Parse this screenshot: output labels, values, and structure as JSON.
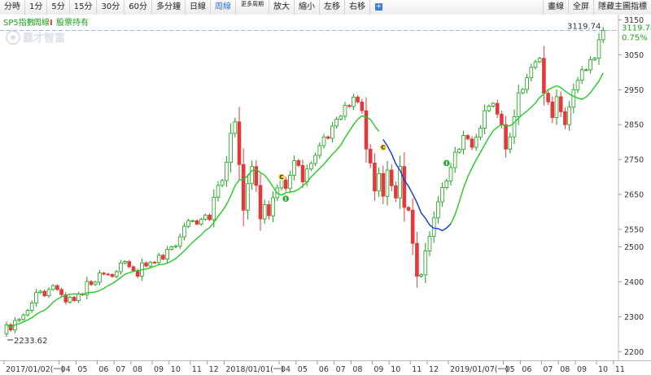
{
  "toolbar": {
    "left": [
      {
        "id": "minute-chart",
        "label": "分時"
      },
      {
        "id": "1min",
        "label": "1分"
      },
      {
        "id": "5min",
        "label": "5分"
      },
      {
        "id": "15min",
        "label": "15分"
      },
      {
        "id": "30min",
        "label": "30分"
      },
      {
        "id": "60min",
        "label": "60分"
      },
      {
        "id": "multi-min",
        "label": "多分鐘"
      },
      {
        "id": "daily",
        "label": "日線"
      },
      {
        "id": "weekly",
        "label": "周線",
        "active": true
      },
      {
        "id": "more-periods",
        "label": "更多周期"
      },
      {
        "id": "zoom-in",
        "label": "放大"
      },
      {
        "id": "zoom-out",
        "label": "縮小"
      },
      {
        "id": "move-left",
        "label": "左移"
      },
      {
        "id": "move-right",
        "label": "右移"
      }
    ],
    "plus_label": "+",
    "right": [
      {
        "id": "drawing",
        "label": "畫線"
      },
      {
        "id": "fullscreen",
        "label": "全屏"
      },
      {
        "id": "hide-indicator",
        "label": "隱藏主圖指標"
      }
    ]
  },
  "legend": {
    "symbol": "SP5指數",
    "period": "周線",
    "mark": "I",
    "holding": "股票持有"
  },
  "watermark": "露才智富",
  "colors": {
    "up": "#e23a3a",
    "down": "#18a018",
    "ma": "#22cc22",
    "ma_alt": "#1533d6",
    "last_price": "#20a020",
    "toolbar_active": "#2a73d9"
  },
  "chart_data": {
    "type": "candlestick",
    "ylim": [
      2175,
      3165
    ],
    "yticks": [
      2200,
      2300,
      2400,
      2500,
      2550,
      2650,
      2750,
      2850,
      2950,
      3050,
      3150
    ],
    "x_labels": [
      "2017/01/02(一)",
      "04",
      "05",
      "06",
      "07",
      "08",
      "09",
      "10",
      "11",
      "12",
      "2018/01/01(一)",
      "04",
      "05",
      "06",
      "07",
      "08",
      "09",
      "10",
      "11",
      "12",
      "2019/01/07(一)",
      "05",
      "06",
      "07",
      "08",
      "09",
      "10",
      "11"
    ],
    "x_label_index": [
      0,
      13,
      17,
      22,
      26,
      30,
      35,
      39,
      44,
      48,
      52,
      65,
      69,
      74,
      78,
      82,
      87,
      91,
      96,
      100,
      105,
      118,
      122,
      127,
      131,
      135,
      140,
      144
    ],
    "start_open": 2251,
    "closes": [
      2277,
      2262,
      2289,
      2292,
      2305,
      2318,
      2339,
      2369,
      2373,
      2360,
      2378,
      2389,
      2378,
      2363,
      2342,
      2356,
      2346,
      2365,
      2363,
      2401,
      2392,
      2399,
      2425,
      2422,
      2421,
      2415,
      2429,
      2454,
      2458,
      2443,
      2432,
      2416,
      2454,
      2445,
      2456,
      2455,
      2476,
      2465,
      2493,
      2500,
      2503,
      2529,
      2559,
      2575,
      2575,
      2565,
      2579,
      2591,
      2578,
      2642,
      2676,
      2690,
      2742,
      2825,
      2858,
      2736,
      2605,
      2681,
      2730,
      2676,
      2580,
      2621,
      2589,
      2641,
      2669,
      2692,
      2667,
      2705,
      2747,
      2733,
      2686,
      2723,
      2739,
      2762,
      2790,
      2815,
      2811,
      2846,
      2866,
      2874,
      2905,
      2902,
      2929,
      2915,
      2890,
      2780,
      2740,
      2660,
      2710,
      2645,
      2720,
      2675,
      2640,
      2730,
      2613,
      2605,
      2510,
      2416,
      2420,
      2488,
      2530,
      2583,
      2629,
      2670,
      2689,
      2727,
      2771,
      2779,
      2819,
      2809,
      2785,
      2814,
      2840,
      2890,
      2903,
      2911,
      2880,
      2850,
      2780,
      2815,
      2873,
      2941,
      2951,
      2984,
      3014,
      3030,
      3040,
      2940,
      2915,
      2870,
      2930,
      2887,
      2850,
      2900,
      2950,
      2977,
      3007,
      3007,
      3036,
      3040,
      3093,
      3120
    ],
    "last_price": "3119.74",
    "last_change": "0.75%",
    "low_marker": "2233.62",
    "signals": [
      {
        "index": 65,
        "type": "C",
        "price": 2700
      },
      {
        "index": 66,
        "type": "I",
        "price": 2638
      },
      {
        "index": 89,
        "type": "C",
        "price": 2785
      },
      {
        "index": 104,
        "type": "I",
        "price": 2740
      }
    ],
    "grid": false
  }
}
